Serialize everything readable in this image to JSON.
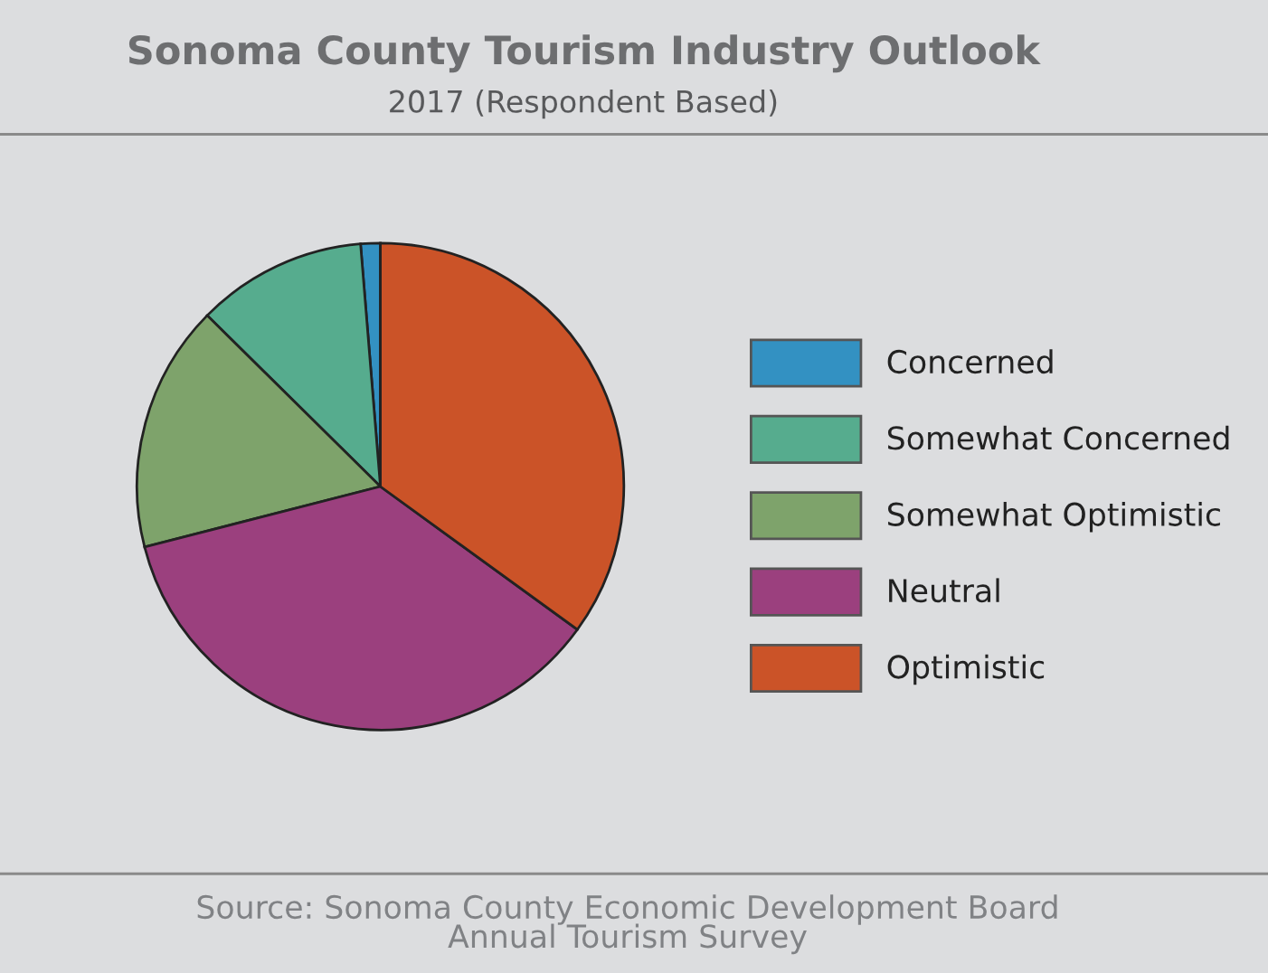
{
  "chart_data": {
    "type": "pie",
    "title": "Sonoma County Tourism Industry Outlook",
    "subtitle": "2017 (Respondent Based)",
    "categories": [
      "Concerned",
      "Somewhat Concerned",
      "Somewhat Optimistic",
      "Neutral",
      "Optimistic"
    ],
    "values": [
      1.3,
      11.3,
      16.4,
      36,
      35
    ],
    "colors": [
      "#3391c2",
      "#56ac8e",
      "#7ea36b",
      "#9b407e",
      "#cb5328"
    ],
    "legend": "right",
    "annotations": [
      "Source: Sonoma County Economic Development Board\nAnnual Tourism Survey"
    ]
  }
}
